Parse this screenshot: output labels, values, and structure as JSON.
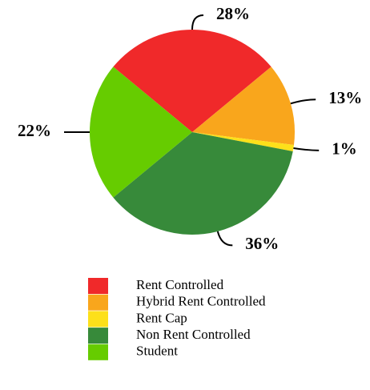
{
  "chart_data": {
    "type": "pie",
    "categories": [
      "Rent Controlled",
      "Hybrid Rent Controlled",
      "Rent Cap",
      "Non Rent Controlled",
      "Student"
    ],
    "values": [
      28,
      13,
      1,
      36,
      22
    ],
    "value_labels": [
      "28%",
      "13%",
      "1%",
      "36%",
      "22%"
    ],
    "colors": [
      "#f0292a",
      "#f9a61c",
      "#fde01a",
      "#378a3a",
      "#66cc00"
    ],
    "legend": "bottom"
  }
}
